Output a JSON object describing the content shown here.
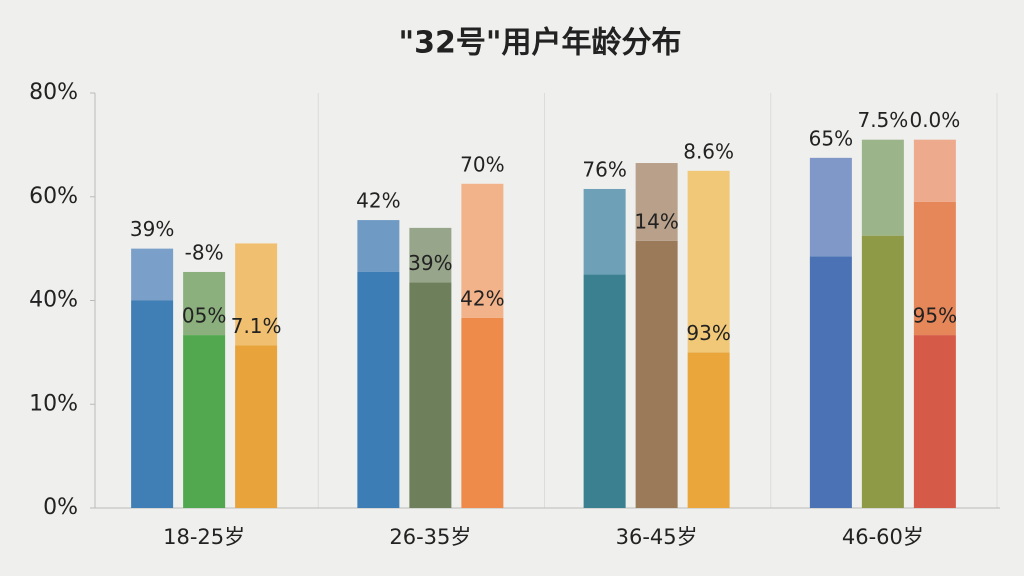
{
  "chart_data": {
    "type": "stacked-grouped-bar",
    "title": "\"32号\"用户年龄分布",
    "yticks": [
      {
        "value": 0,
        "label": "0%"
      },
      {
        "value": 10,
        "label": "10%"
      },
      {
        "value": 40,
        "label": "40%"
      },
      {
        "value": 60,
        "label": "60%"
      },
      {
        "value": 80,
        "label": "80%"
      }
    ],
    "ylim": [
      0,
      80
    ],
    "groups": [
      {
        "category": "18-25岁",
        "bars": [
          {
            "segments": [
              {
                "value": 40,
                "color": "#3f7fb5"
              },
              {
                "value": 10,
                "color": "#7a9fc8",
                "label": "39%"
              }
            ]
          },
          {
            "segments": [
              {
                "value": 30,
                "color": "#52a84f",
                "label": "05%"
              },
              {
                "value": 15.5,
                "color": "#8bb07e",
                "label": "-8%"
              }
            ]
          },
          {
            "segments": [
              {
                "value": 27,
                "color": "#e8a33a",
                "label": "7.1%"
              },
              {
                "value": 24,
                "color": "#f0c070"
              }
            ]
          }
        ]
      },
      {
        "category": "26-35岁",
        "bars": [
          {
            "segments": [
              {
                "value": 45.5,
                "color": "#3b7db4"
              },
              {
                "value": 10,
                "color": "#6f9ac4",
                "label": "42%"
              }
            ]
          },
          {
            "segments": [
              {
                "value": 43.5,
                "color": "#6e7f5b",
                "label": "39%"
              },
              {
                "value": 10.5,
                "color": "#97a58a"
              }
            ]
          },
          {
            "segments": [
              {
                "value": 35,
                "color": "#ef8b4a",
                "label": "42%"
              },
              {
                "value": 27.5,
                "color": "#f2b28a",
                "label": "70%"
              }
            ]
          }
        ]
      },
      {
        "category": "36-45岁",
        "bars": [
          {
            "segments": [
              {
                "value": 45,
                "color": "#3a8090"
              },
              {
                "value": 16.5,
                "color": "#6ea0b8",
                "label": "76%"
              }
            ]
          },
          {
            "segments": [
              {
                "value": 51.5,
                "color": "#9b7a5a",
                "label": "14%"
              },
              {
                "value": 15,
                "color": "#b8a08a"
              }
            ]
          },
          {
            "segments": [
              {
                "value": 25,
                "color": "#eaa63a",
                "label": "93%"
              },
              {
                "value": 40,
                "color": "#f0c878",
                "label": "8.6%"
              }
            ]
          }
        ]
      },
      {
        "category": "46-60岁",
        "bars": [
          {
            "segments": [
              {
                "value": 48.5,
                "color": "#4a72b5"
              },
              {
                "value": 19,
                "color": "#7f98c8",
                "label": "65%"
              }
            ]
          },
          {
            "segments": [
              {
                "value": 52.5,
                "color": "#8e9a45"
              },
              {
                "value": 18.5,
                "color": "#9cb48a",
                "label": "7.5%"
              }
            ]
          },
          {
            "segments": [
              {
                "value": 30,
                "color": "#d65a48",
                "label": "95%"
              },
              {
                "value": 29,
                "color": "#e6875a"
              },
              {
                "value": 12,
                "color": "#eeaa8c",
                "label": "0.0%"
              }
            ]
          }
        ]
      }
    ]
  }
}
